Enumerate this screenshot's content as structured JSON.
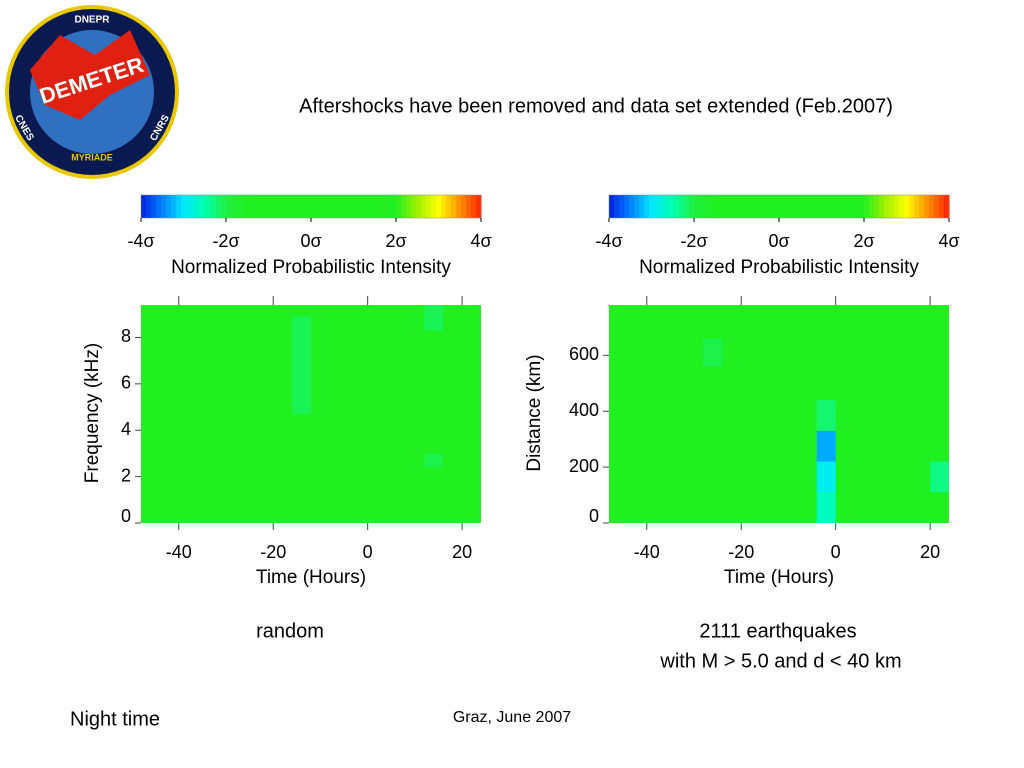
{
  "title": "Aftershocks have been removed and data set extended (Feb.2007)",
  "logo": {
    "top": "DNEPR",
    "name": "DEMETER",
    "left": "CNES",
    "right": "CNRS",
    "bottom": "MYRIADE"
  },
  "captions": [
    "random",
    "2111 earthquakes",
    "with M > 5.0 and d < 40 km"
  ],
  "footer_left": "Night time",
  "footer_center": "Graz, June 2007",
  "chart_data": [
    {
      "type": "heatmap",
      "xlabel": "Time (Hours)",
      "ylabel": "Frequency (kHz)",
      "xlim": [
        -48,
        24
      ],
      "ylim": [
        0,
        9.4
      ],
      "xticks": [
        -40,
        -20,
        0,
        20
      ],
      "yticks": [
        0,
        2,
        4,
        6,
        8
      ],
      "colorbar_label": "Normalized Probabilistic Intensity",
      "zlim": [
        -4,
        4
      ],
      "zticks": [
        {
          "value": -4,
          "label": "-4σ"
        },
        {
          "value": -2,
          "label": "-2σ"
        },
        {
          "value": 0,
          "label": "0σ"
        },
        {
          "value": 2,
          "label": "2σ"
        },
        {
          "value": 4,
          "label": "4σ"
        }
      ],
      "colors": [
        "#0020e0",
        "#0080ff",
        "#00e8ff",
        "#00ffb0",
        "#20f040",
        "#20f020",
        "#20f020",
        "#20f020",
        "#20f020",
        "#20f020",
        "#20f020",
        "#20f020",
        "#20f020",
        "#a0f000",
        "#ffff00",
        "#ff9000",
        "#ff2000"
      ],
      "background": 0,
      "cells": [
        {
          "x": [
            -16,
            -12
          ],
          "y": [
            4.7,
            8.9
          ],
          "value": -2.1
        },
        {
          "x": [
            12,
            16
          ],
          "y": [
            8.3,
            9.4
          ],
          "value": -2.1
        },
        {
          "x": [
            12,
            16
          ],
          "y": [
            2.4,
            3.0
          ],
          "value": -2.05
        }
      ]
    },
    {
      "type": "heatmap",
      "xlabel": "Time (Hours)",
      "ylabel": "Distance (km)",
      "xlim": [
        -48,
        24
      ],
      "ylim": [
        0,
        780
      ],
      "xticks": [
        -40,
        -20,
        0,
        20
      ],
      "yticks": [
        0,
        200,
        400,
        600
      ],
      "colorbar_label": "Normalized Probabilistic Intensity",
      "zlim": [
        -4,
        4
      ],
      "zticks": [
        {
          "value": -4,
          "label": "-4σ"
        },
        {
          "value": -2,
          "label": "-2σ"
        },
        {
          "value": 0,
          "label": "0σ"
        },
        {
          "value": 2,
          "label": "2σ"
        },
        {
          "value": 4,
          "label": "4σ"
        }
      ],
      "colors": [
        "#0020e0",
        "#0080ff",
        "#00e8ff",
        "#00ffb0",
        "#20f040",
        "#20f020",
        "#20f020",
        "#20f020",
        "#20f020",
        "#20f020",
        "#20f020",
        "#20f020",
        "#20f020",
        "#a0f000",
        "#ffff00",
        "#ff9000",
        "#ff2000"
      ],
      "background": 0,
      "cells": [
        {
          "x": [
            -4,
            0
          ],
          "y": [
            0,
            110
          ],
          "value": -2.6
        },
        {
          "x": [
            -4,
            0
          ],
          "y": [
            110,
            220
          ],
          "value": -2.9
        },
        {
          "x": [
            -4,
            0
          ],
          "y": [
            220,
            330
          ],
          "value": -3.3
        },
        {
          "x": [
            -4,
            0
          ],
          "y": [
            330,
            440
          ],
          "value": -2.2
        },
        {
          "x": [
            20,
            24
          ],
          "y": [
            110,
            220
          ],
          "value": -2.3
        },
        {
          "x": [
            -28,
            -24
          ],
          "y": [
            560,
            660
          ],
          "value": -2.05
        }
      ]
    }
  ]
}
